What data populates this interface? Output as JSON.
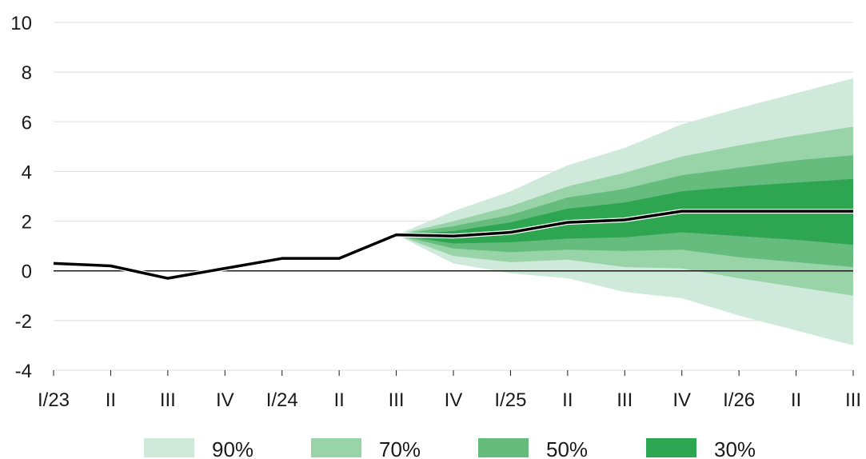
{
  "chart_data": {
    "type": "area",
    "title": "",
    "xlabel": "",
    "ylabel": "",
    "ylim": [
      -4,
      10
    ],
    "yticks": [
      "10",
      "8",
      "6",
      "4",
      "2",
      "0",
      "-2",
      "-4"
    ],
    "categories": [
      "I/23",
      "II",
      "III",
      "IV",
      "I/24",
      "II",
      "III",
      "IV",
      "I/25",
      "II",
      "III",
      "IV",
      "I/26",
      "II",
      "III"
    ],
    "grid": true,
    "legend_position": "bottom",
    "series": [
      {
        "name": "",
        "type": "line",
        "color": "#000000",
        "values": [
          0.3,
          0.2,
          -0.3,
          0.1,
          0.5,
          0.5,
          1.45,
          1.4,
          1.55,
          1.95,
          2.05,
          2.4,
          2.4,
          2.4,
          2.4
        ]
      }
    ],
    "fan_start_index": 6,
    "bands": [
      {
        "name": "90%",
        "color": "#cfeadb",
        "lower": [
          1.45,
          0.3,
          -0.1,
          -0.3,
          -0.85,
          -1.1,
          -1.8,
          -2.4,
          -3.0
        ],
        "upper": [
          1.45,
          2.4,
          3.2,
          4.25,
          4.95,
          5.9,
          6.55,
          7.15,
          7.75
        ]
      },
      {
        "name": "70%",
        "color": "#99d4a9",
        "lower": [
          1.45,
          0.6,
          0.35,
          0.45,
          0.15,
          0.1,
          -0.3,
          -0.65,
          -1.0
        ],
        "upper": [
          1.45,
          2.0,
          2.6,
          3.4,
          3.95,
          4.6,
          5.05,
          5.45,
          5.8
        ]
      },
      {
        "name": "50%",
        "color": "#66bc7c",
        "lower": [
          1.45,
          0.9,
          0.75,
          0.85,
          0.8,
          0.85,
          0.55,
          0.35,
          0.15
        ],
        "upper": [
          1.45,
          1.8,
          2.25,
          2.95,
          3.3,
          3.85,
          4.15,
          4.45,
          4.65
        ]
      },
      {
        "name": "30%",
        "color": "#2ea551",
        "lower": [
          1.45,
          1.1,
          1.15,
          1.3,
          1.35,
          1.55,
          1.4,
          1.25,
          1.05
        ],
        "upper": [
          1.45,
          1.6,
          1.95,
          2.5,
          2.75,
          3.2,
          3.4,
          3.55,
          3.7
        ]
      }
    ]
  }
}
